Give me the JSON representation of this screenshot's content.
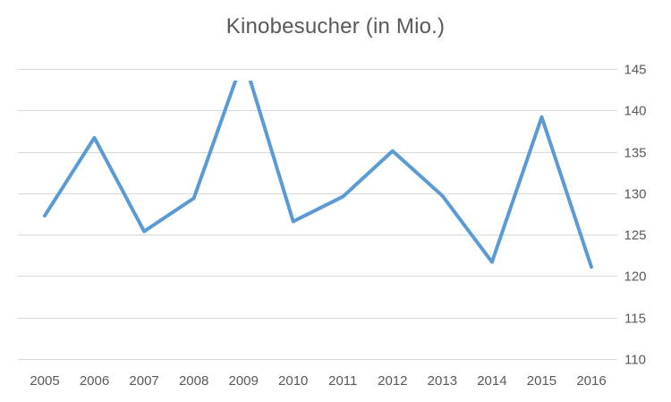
{
  "chart_data": {
    "type": "line",
    "title": "Kinobesucher (in Mio.)",
    "xlabel": "",
    "ylabel": "",
    "categories": [
      "2005",
      "2006",
      "2007",
      "2008",
      "2009",
      "2010",
      "2011",
      "2012",
      "2013",
      "2014",
      "2015",
      "2016"
    ],
    "series": [
      {
        "values": [
          127.3,
          136.7,
          125.4,
          129.4,
          146.3,
          126.6,
          129.6,
          135.1,
          129.7,
          121.7,
          139.2,
          121.1
        ],
        "color": "#5b9bd5"
      }
    ],
    "ylim": [
      110,
      145
    ],
    "yticks": [
      145,
      140,
      135,
      130,
      125,
      120,
      115,
      110
    ],
    "grid": true,
    "y_axis_side": "right",
    "gridline_color": "#d9d9d9",
    "text_color": "#595959"
  }
}
